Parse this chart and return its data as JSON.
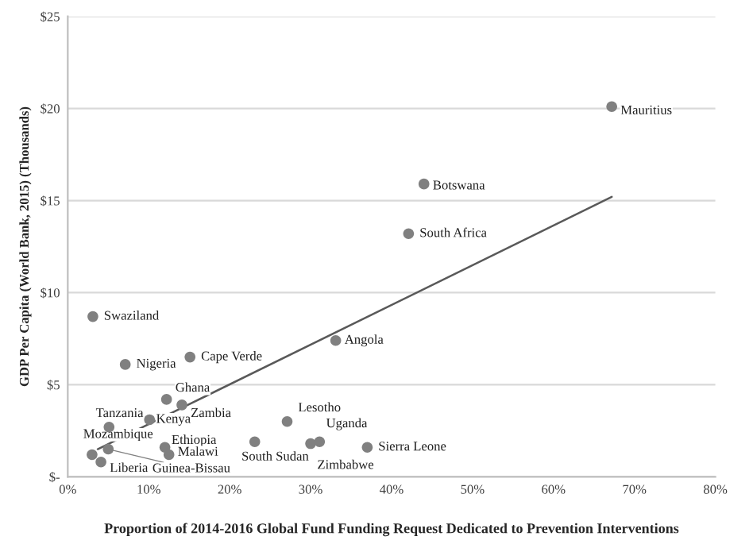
{
  "chart_data": {
    "type": "scatter",
    "xlabel": "Proportion of 2014-2016 Global Fund Funding Request Dedicated to Prevention Interventions",
    "ylabel": "GDP Per Capita (World Bank, 2015) (Thousands)",
    "series": [
      {
        "color": "#808080",
        "marker": "circle",
        "x": [
          67.2,
          44.0,
          42.1,
          3.1,
          7.1,
          15.1,
          33.1,
          12.2,
          14.1,
          5.1,
          10.1,
          27.1,
          12.0,
          12.5,
          23.1,
          31.1,
          30.0,
          37.0,
          3.0,
          5.0,
          4.1
        ],
        "values": [
          20.1,
          15.9,
          13.2,
          8.7,
          6.1,
          6.5,
          7.4,
          4.2,
          3.9,
          2.7,
          3.1,
          3.0,
          1.6,
          1.2,
          1.9,
          1.9,
          1.8,
          1.6,
          1.2,
          1.5,
          0.8
        ]
      },
      {
        "type": "line",
        "color": "#595959",
        "x": [
          3.7,
          67.2
        ],
        "values": [
          1.5,
          15.2
        ]
      }
    ],
    "annotations": [
      {
        "text": "Mauritius",
        "x": 67.2,
        "y": 20.1
      },
      {
        "text": "Botswana",
        "x": 44.0,
        "y": 15.9
      },
      {
        "text": "South Africa",
        "x": 42.1,
        "y": 13.2
      },
      {
        "text": "Swaziland",
        "x": 3.1,
        "y": 8.7
      },
      {
        "text": "Nigeria",
        "x": 7.1,
        "y": 6.1
      },
      {
        "text": "Cape Verde",
        "x": 15.1,
        "y": 6.5
      },
      {
        "text": "Angola",
        "x": 33.1,
        "y": 7.4
      },
      {
        "text": "Ghana",
        "x": 12.2,
        "y": 4.2
      },
      {
        "text": "Zambia",
        "x": 14.1,
        "y": 3.9
      },
      {
        "text": "Tanzania",
        "x": 5.1,
        "y": 2.7
      },
      {
        "text": "Kenya",
        "x": 10.1,
        "y": 3.1
      },
      {
        "text": "Lesotho",
        "x": 27.1,
        "y": 3.0
      },
      {
        "text": "Ethiopia",
        "x": 12.0,
        "y": 1.6
      },
      {
        "text": "Malawi",
        "x": 12.5,
        "y": 1.2
      },
      {
        "text": "South Sudan",
        "x": 23.1,
        "y": 1.9
      },
      {
        "text": "Uganda",
        "x": 31.1,
        "y": 1.9
      },
      {
        "text": "Zimbabwe",
        "x": 30.0,
        "y": 1.8
      },
      {
        "text": "Sierra Leone",
        "x": 37.0,
        "y": 1.6
      },
      {
        "text": "Mozambique",
        "x": 3.0,
        "y": 1.2
      },
      {
        "text": "Guinea-Bissau",
        "x": 5.0,
        "y": 1.5
      },
      {
        "text": "Liberia",
        "x": 4.1,
        "y": 0.8
      }
    ],
    "xlim": [
      0,
      80
    ],
    "xticks": [
      {
        "value": 0,
        "label": "0%"
      },
      {
        "value": 10,
        "label": "10%"
      },
      {
        "value": 20,
        "label": "20%"
      },
      {
        "value": 30,
        "label": "30%"
      },
      {
        "value": 40,
        "label": "40%"
      },
      {
        "value": 50,
        "label": "50%"
      },
      {
        "value": 60,
        "label": "60%"
      },
      {
        "value": 70,
        "label": "70%"
      },
      {
        "value": 80,
        "label": "80%"
      }
    ],
    "ylim": [
      0,
      25
    ],
    "yticks": [
      {
        "value": 0,
        "label": "$-"
      },
      {
        "value": 5,
        "label": "$5"
      },
      {
        "value": 10,
        "label": "$10"
      },
      {
        "value": 15,
        "label": "$15"
      },
      {
        "value": 20,
        "label": "$20"
      },
      {
        "value": 25,
        "label": "$25"
      }
    ],
    "grid": "y"
  }
}
